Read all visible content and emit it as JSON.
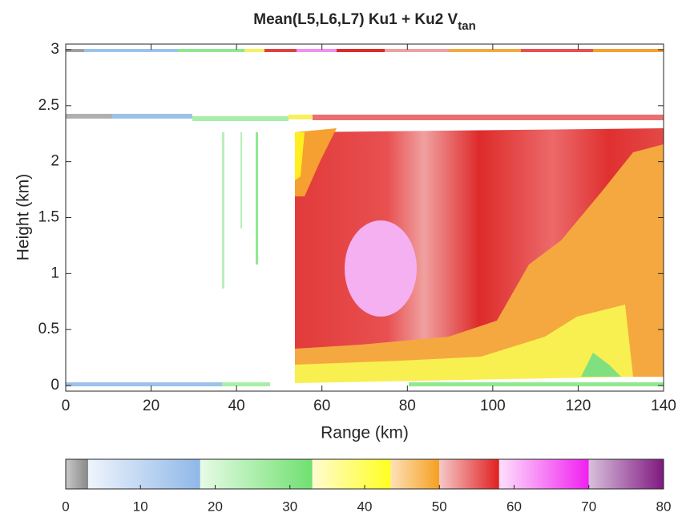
{
  "chart_data": {
    "type": "heatmap",
    "title": "Mean(L5,L6,L7) Ku1 + Ku2  V",
    "title_subscript": "tan",
    "x_label": "Range (km)",
    "y_label": "Height (km)",
    "xlim": [
      0,
      140
    ],
    "xticks": [
      0,
      20,
      40,
      60,
      80,
      100,
      120,
      140
    ],
    "ylim": [
      -0.05,
      3.05
    ],
    "yticks": [
      0,
      0.5,
      1,
      1.5,
      2,
      2.5,
      3
    ],
    "colorbar": {
      "lim": [
        0,
        80
      ],
      "ticks": [
        0,
        10,
        20,
        30,
        40,
        50,
        60,
        70,
        80
      ],
      "bins": [
        0,
        3,
        18,
        33,
        43.5,
        50,
        58,
        70,
        80
      ],
      "colors_from": [
        "#c8c8c8",
        "#eef4fc",
        "#e6fbe6",
        "#fffbd0",
        "#fde0b8",
        "#f6c8c8",
        "#fde0fb",
        "#d8c0dc"
      ],
      "colors_to": [
        "#888888",
        "#8fb8e8",
        "#70e070",
        "#ffff20",
        "#f5a020",
        "#e02020",
        "#f020f0",
        "#801880"
      ]
    }
  }
}
